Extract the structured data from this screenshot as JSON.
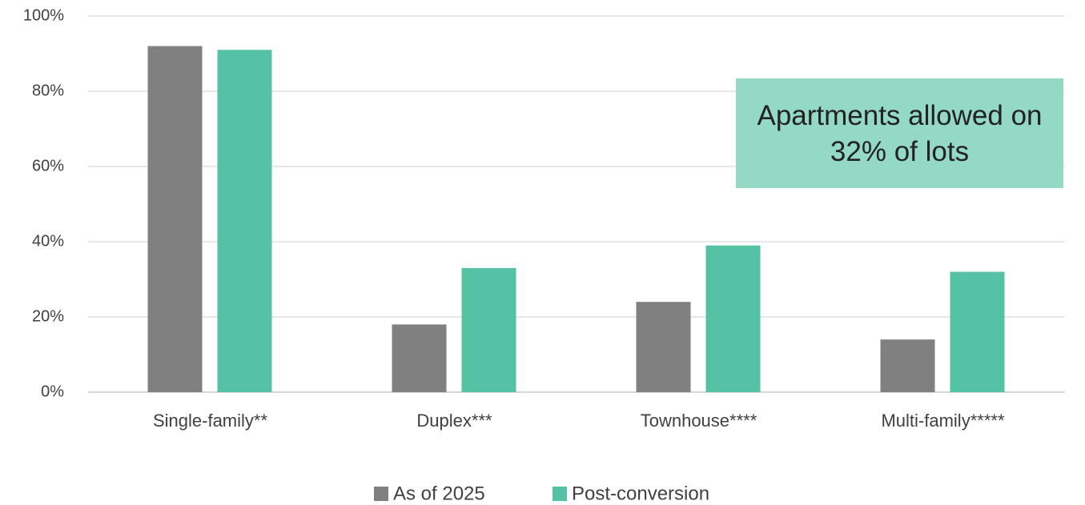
{
  "chart_data": {
    "type": "bar",
    "categories": [
      "Single-family**",
      "Duplex***",
      "Townhouse****",
      "Multi-family*****"
    ],
    "series": [
      {
        "name": "As of 2025",
        "color": "#808080",
        "values": [
          92,
          18,
          24,
          14
        ]
      },
      {
        "name": "Post-conversion",
        "color": "#55c1a5",
        "values": [
          91,
          33,
          39,
          32
        ]
      }
    ],
    "ylim": [
      0,
      100
    ],
    "yticks": [
      {
        "value": 0,
        "label": "0%"
      },
      {
        "value": 20,
        "label": "20%"
      },
      {
        "value": 40,
        "label": "40%"
      },
      {
        "value": 60,
        "label": "60%"
      },
      {
        "value": 80,
        "label": "80%"
      },
      {
        "value": 100,
        "label": "100%"
      }
    ],
    "grid": true,
    "legend": "bottom",
    "annotation": "Apartments allowed on 32% of lots"
  }
}
